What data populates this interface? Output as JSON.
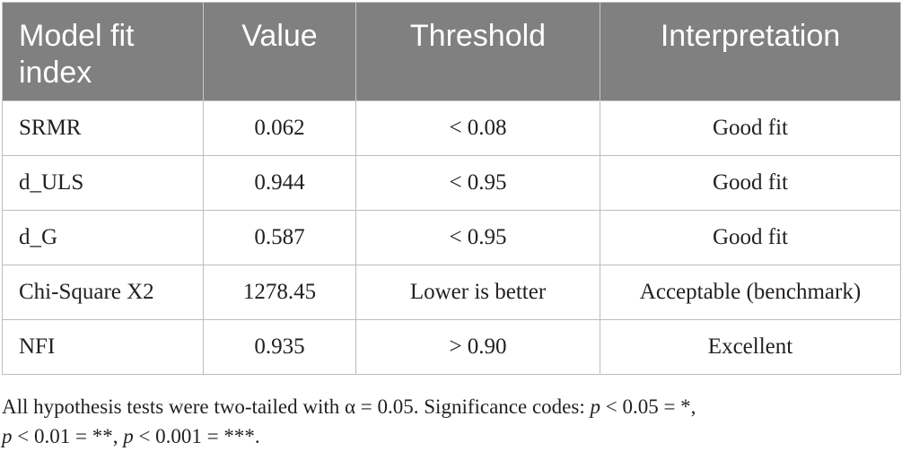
{
  "table": {
    "headers": [
      "Model fit index",
      "Value",
      "Threshold",
      "Interpretation"
    ],
    "rows": [
      [
        "SRMR",
        "0.062",
        "< 0.08",
        "Good fit"
      ],
      [
        "d_ULS",
        "0.944",
        "< 0.95",
        "Good fit"
      ],
      [
        "d_G",
        "0.587",
        "< 0.95",
        "Good fit"
      ],
      [
        "Chi-Square X2",
        "1278.45",
        "Lower is better",
        "Acceptable (benchmark)"
      ],
      [
        "NFI",
        "0.935",
        "> 0.90",
        "Excellent"
      ]
    ]
  },
  "footnote": {
    "part1": "All hypothesis tests were two-tailed with α = 0.05. Significance codes: ",
    "p1": "p",
    "part2": " < 0.05 = *,",
    "p2": "p",
    "part3": " < 0.01 = **, ",
    "p3": "p",
    "part4": " < 0.001 = ***."
  },
  "colors": {
    "header_background": "#808080",
    "header_text": "#ffffff",
    "border": "#bdbdbd",
    "body_text": "#231f20"
  }
}
